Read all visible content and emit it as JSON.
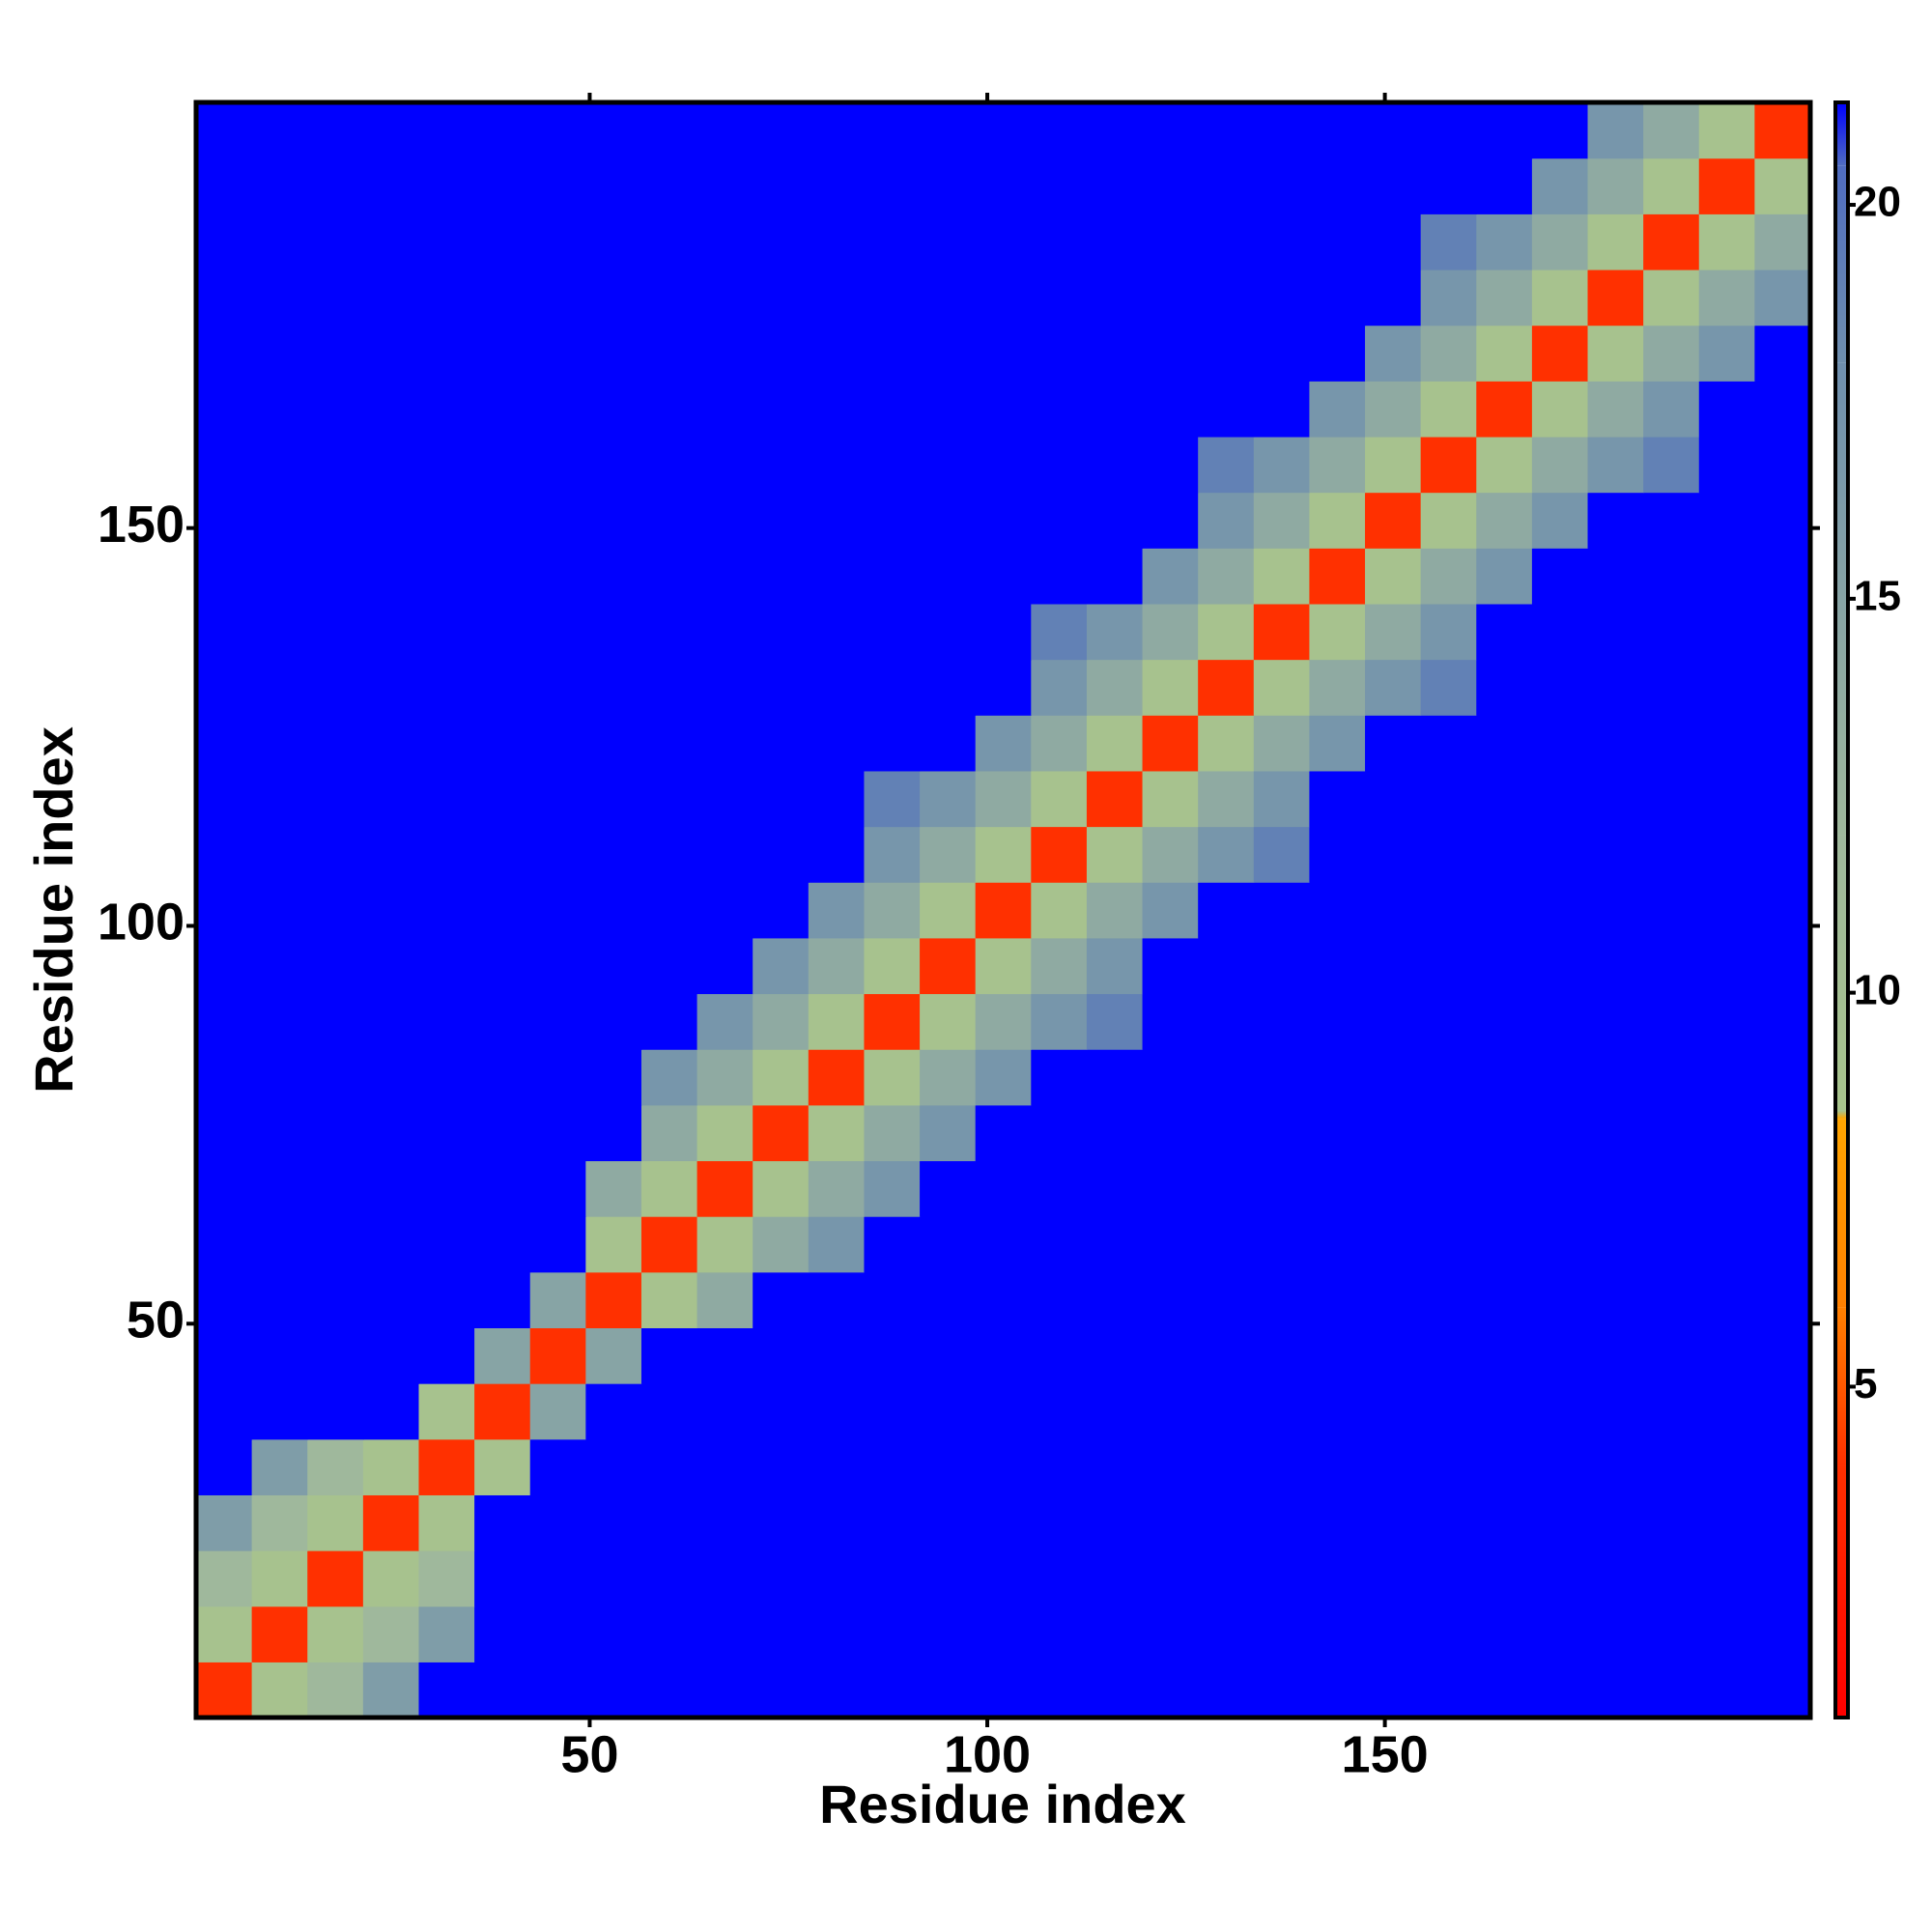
{
  "chart_data": {
    "type": "heatmap",
    "x_label": "Residue index",
    "y_label": "Residue index",
    "xbins": [
      0.5,
      7.5,
      14.5,
      21.5,
      28.5,
      35.5,
      42.5,
      49.5,
      56.5,
      63.5,
      70.5,
      77.5,
      84.5,
      91.5,
      98.5,
      105.5,
      112.5,
      119.5,
      126.5,
      133.5,
      140.5,
      147.5,
      154.5,
      161.5,
      168.5,
      175.5,
      182.5,
      189.5,
      196.5,
      203.5
    ],
    "ybins": [
      0.5,
      7.5,
      14.5,
      21.5,
      28.5,
      35.5,
      42.5,
      49.5,
      56.5,
      63.5,
      70.5,
      77.5,
      84.5,
      91.5,
      98.5,
      105.5,
      112.5,
      119.5,
      126.5,
      133.5,
      140.5,
      147.5,
      154.5,
      161.5,
      168.5,
      175.5,
      182.5,
      189.5,
      196.5,
      203.5
    ],
    "xlim": [
      0.5,
      203.5
    ],
    "ylim": [
      0.5,
      203.5
    ],
    "xticks": [
      50,
      100,
      150
    ],
    "yticks": [
      50,
      100,
      150
    ],
    "clim": [
      0.8,
      21.3
    ],
    "cticks": [
      5,
      10,
      15,
      20
    ],
    "colorscale": [
      {
        "value": 0.8,
        "color": "#ff0000"
      },
      {
        "value": 4,
        "color": "#ff3000"
      },
      {
        "value": 6,
        "color": "#ff8000"
      },
      {
        "value": 8.4,
        "color": "#ffa500"
      },
      {
        "value": 8.5,
        "color": "#a8c48c"
      },
      {
        "value": 12,
        "color": "#9fb89c"
      },
      {
        "value": 18,
        "color": "#6f8fae"
      },
      {
        "value": 20.5,
        "color": "#4f6cc0"
      },
      {
        "value": 21.3,
        "color": "#0000ff"
      }
    ],
    "z": [
      [
        4,
        9,
        12,
        16,
        21.3,
        21.3,
        21.3,
        21.3,
        21.3,
        21.3,
        21.3,
        21.3,
        21.3,
        21.3,
        21.3,
        21.3,
        21.3,
        21.3,
        21.3,
        21.3,
        21.3,
        21.3,
        21.3,
        21.3,
        21.3,
        21.3,
        21.3,
        21.3,
        21.3
      ],
      [
        9,
        4,
        9,
        12,
        16,
        21.3,
        21.3,
        21.3,
        21.3,
        21.3,
        21.3,
        21.3,
        21.3,
        21.3,
        21.3,
        21.3,
        21.3,
        21.3,
        21.3,
        21.3,
        21.3,
        21.3,
        21.3,
        21.3,
        21.3,
        21.3,
        21.3,
        21.3,
        21.3
      ],
      [
        12,
        9,
        4,
        9,
        12,
        21.3,
        21.3,
        21.3,
        21.3,
        21.3,
        21.3,
        21.3,
        21.3,
        21.3,
        21.3,
        21.3,
        21.3,
        21.3,
        21.3,
        21.3,
        21.3,
        21.3,
        21.3,
        21.3,
        21.3,
        21.3,
        21.3,
        21.3,
        21.3
      ],
      [
        16,
        12,
        9,
        4,
        9,
        21.3,
        21.3,
        21.3,
        21.3,
        21.3,
        21.3,
        21.3,
        21.3,
        21.3,
        21.3,
        21.3,
        21.3,
        21.3,
        21.3,
        21.3,
        21.3,
        21.3,
        21.3,
        21.3,
        21.3,
        21.3,
        21.3,
        21.3,
        21.3
      ],
      [
        21.3,
        16,
        12,
        9,
        4,
        9,
        21.3,
        21.3,
        21.3,
        21.3,
        21.3,
        21.3,
        21.3,
        21.3,
        21.3,
        21.3,
        21.3,
        21.3,
        21.3,
        21.3,
        21.3,
        21.3,
        21.3,
        21.3,
        21.3,
        21.3,
        21.3,
        21.3,
        21.3
      ],
      [
        21.3,
        21.3,
        21.3,
        21.3,
        9,
        4,
        15,
        21.3,
        21.3,
        21.3,
        21.3,
        21.3,
        21.3,
        21.3,
        21.3,
        21.3,
        21.3,
        21.3,
        21.3,
        21.3,
        21.3,
        21.3,
        21.3,
        21.3,
        21.3,
        21.3,
        21.3,
        21.3,
        21.3
      ],
      [
        21.3,
        21.3,
        21.3,
        21.3,
        21.3,
        15,
        4,
        15,
        21.3,
        21.3,
        21.3,
        21.3,
        21.3,
        21.3,
        21.3,
        21.3,
        21.3,
        21.3,
        21.3,
        21.3,
        21.3,
        21.3,
        21.3,
        21.3,
        21.3,
        21.3,
        21.3,
        21.3,
        21.3
      ],
      [
        21.3,
        21.3,
        21.3,
        21.3,
        21.3,
        21.3,
        15,
        4,
        9,
        14,
        21.3,
        21.3,
        21.3,
        21.3,
        21.3,
        21.3,
        21.3,
        21.3,
        21.3,
        21.3,
        21.3,
        21.3,
        21.3,
        21.3,
        21.3,
        21.3,
        21.3,
        21.3,
        21.3
      ],
      [
        21.3,
        21.3,
        21.3,
        21.3,
        21.3,
        21.3,
        21.3,
        9,
        4,
        9,
        14,
        17,
        21.3,
        21.3,
        21.3,
        21.3,
        21.3,
        21.3,
        21.3,
        21.3,
        21.3,
        21.3,
        21.3,
        21.3,
        21.3,
        21.3,
        21.3,
        21.3,
        21.3
      ],
      [
        21.3,
        21.3,
        21.3,
        21.3,
        21.3,
        21.3,
        21.3,
        14,
        9,
        4,
        9,
        14,
        17,
        21.3,
        21.3,
        21.3,
        21.3,
        21.3,
        21.3,
        21.3,
        21.3,
        21.3,
        21.3,
        21.3,
        21.3,
        21.3,
        21.3,
        21.3,
        21.3
      ],
      [
        21.3,
        21.3,
        21.3,
        21.3,
        21.3,
        21.3,
        21.3,
        21.3,
        14,
        9,
        4,
        9,
        14,
        17,
        21.3,
        21.3,
        21.3,
        21.3,
        21.3,
        21.3,
        21.3,
        21.3,
        21.3,
        21.3,
        21.3,
        21.3,
        21.3,
        21.3,
        21.3
      ],
      [
        21.3,
        21.3,
        21.3,
        21.3,
        21.3,
        21.3,
        21.3,
        21.3,
        17,
        14,
        9,
        4,
        9,
        14,
        17,
        21.3,
        21.3,
        21.3,
        21.3,
        21.3,
        21.3,
        21.3,
        21.3,
        21.3,
        21.3,
        21.3,
        21.3,
        21.3,
        21.3
      ],
      [
        21.3,
        21.3,
        21.3,
        21.3,
        21.3,
        21.3,
        21.3,
        21.3,
        21.3,
        17,
        14,
        9,
        4,
        9,
        14,
        17,
        19,
        21.3,
        21.3,
        21.3,
        21.3,
        21.3,
        21.3,
        21.3,
        21.3,
        21.3,
        21.3,
        21.3,
        21.3
      ],
      [
        21.3,
        21.3,
        21.3,
        21.3,
        21.3,
        21.3,
        21.3,
        21.3,
        21.3,
        21.3,
        17,
        14,
        9,
        4,
        9,
        14,
        17,
        21.3,
        21.3,
        21.3,
        21.3,
        21.3,
        21.3,
        21.3,
        21.3,
        21.3,
        21.3,
        21.3,
        21.3
      ],
      [
        21.3,
        21.3,
        21.3,
        21.3,
        21.3,
        21.3,
        21.3,
        21.3,
        21.3,
        21.3,
        21.3,
        17,
        14,
        9,
        4,
        9,
        14,
        17,
        21.3,
        21.3,
        21.3,
        21.3,
        21.3,
        21.3,
        21.3,
        21.3,
        21.3,
        21.3,
        21.3
      ],
      [
        21.3,
        21.3,
        21.3,
        21.3,
        21.3,
        21.3,
        21.3,
        21.3,
        21.3,
        21.3,
        21.3,
        21.3,
        17,
        14,
        9,
        4,
        9,
        14,
        17,
        19,
        21.3,
        21.3,
        21.3,
        21.3,
        21.3,
        21.3,
        21.3,
        21.3,
        21.3
      ],
      [
        21.3,
        21.3,
        21.3,
        21.3,
        21.3,
        21.3,
        21.3,
        21.3,
        21.3,
        21.3,
        21.3,
        21.3,
        19,
        17,
        14,
        9,
        4,
        9,
        14,
        17,
        21.3,
        21.3,
        21.3,
        21.3,
        21.3,
        21.3,
        21.3,
        21.3,
        21.3
      ],
      [
        21.3,
        21.3,
        21.3,
        21.3,
        21.3,
        21.3,
        21.3,
        21.3,
        21.3,
        21.3,
        21.3,
        21.3,
        21.3,
        21.3,
        17,
        14,
        9,
        4,
        9,
        14,
        17,
        21.3,
        21.3,
        21.3,
        21.3,
        21.3,
        21.3,
        21.3,
        21.3
      ],
      [
        21.3,
        21.3,
        21.3,
        21.3,
        21.3,
        21.3,
        21.3,
        21.3,
        21.3,
        21.3,
        21.3,
        21.3,
        21.3,
        21.3,
        21.3,
        17,
        14,
        9,
        4,
        9,
        14,
        17,
        19,
        21.3,
        21.3,
        21.3,
        21.3,
        21.3,
        21.3
      ],
      [
        21.3,
        21.3,
        21.3,
        21.3,
        21.3,
        21.3,
        21.3,
        21.3,
        21.3,
        21.3,
        21.3,
        21.3,
        21.3,
        21.3,
        21.3,
        19,
        17,
        14,
        9,
        4,
        9,
        14,
        17,
        21.3,
        21.3,
        21.3,
        21.3,
        21.3,
        21.3
      ],
      [
        21.3,
        21.3,
        21.3,
        21.3,
        21.3,
        21.3,
        21.3,
        21.3,
        21.3,
        21.3,
        21.3,
        21.3,
        21.3,
        21.3,
        21.3,
        21.3,
        21.3,
        17,
        14,
        9,
        4,
        9,
        14,
        17,
        21.3,
        21.3,
        21.3,
        21.3,
        21.3
      ],
      [
        21.3,
        21.3,
        21.3,
        21.3,
        21.3,
        21.3,
        21.3,
        21.3,
        21.3,
        21.3,
        21.3,
        21.3,
        21.3,
        21.3,
        21.3,
        21.3,
        21.3,
        21.3,
        17,
        14,
        9,
        4,
        9,
        14,
        17,
        21.3,
        21.3,
        21.3,
        21.3
      ],
      [
        21.3,
        21.3,
        21.3,
        21.3,
        21.3,
        21.3,
        21.3,
        21.3,
        21.3,
        21.3,
        21.3,
        21.3,
        21.3,
        21.3,
        21.3,
        21.3,
        21.3,
        21.3,
        19,
        17,
        14,
        9,
        4,
        9,
        14,
        17,
        19,
        21.3,
        21.3
      ],
      [
        21.3,
        21.3,
        21.3,
        21.3,
        21.3,
        21.3,
        21.3,
        21.3,
        21.3,
        21.3,
        21.3,
        21.3,
        21.3,
        21.3,
        21.3,
        21.3,
        21.3,
        21.3,
        21.3,
        21.3,
        17,
        14,
        9,
        4,
        9,
        14,
        17,
        21.3,
        21.3
      ],
      [
        21.3,
        21.3,
        21.3,
        21.3,
        21.3,
        21.3,
        21.3,
        21.3,
        21.3,
        21.3,
        21.3,
        21.3,
        21.3,
        21.3,
        21.3,
        21.3,
        21.3,
        21.3,
        21.3,
        21.3,
        21.3,
        17,
        14,
        9,
        4,
        9,
        14,
        17,
        21.3
      ],
      [
        21.3,
        21.3,
        21.3,
        21.3,
        21.3,
        21.3,
        21.3,
        21.3,
        21.3,
        21.3,
        21.3,
        21.3,
        21.3,
        21.3,
        21.3,
        21.3,
        21.3,
        21.3,
        21.3,
        21.3,
        21.3,
        21.3,
        17,
        14,
        9,
        4,
        9,
        14,
        17
      ],
      [
        21.3,
        21.3,
        21.3,
        21.3,
        21.3,
        21.3,
        21.3,
        21.3,
        21.3,
        21.3,
        21.3,
        21.3,
        21.3,
        21.3,
        21.3,
        21.3,
        21.3,
        21.3,
        21.3,
        21.3,
        21.3,
        21.3,
        19,
        17,
        14,
        9,
        4,
        9,
        14
      ],
      [
        21.3,
        21.3,
        21.3,
        21.3,
        21.3,
        21.3,
        21.3,
        21.3,
        21.3,
        21.3,
        21.3,
        21.3,
        21.3,
        21.3,
        21.3,
        21.3,
        21.3,
        21.3,
        21.3,
        21.3,
        21.3,
        21.3,
        21.3,
        21.3,
        17,
        14,
        9,
        4,
        9
      ],
      [
        21.3,
        21.3,
        21.3,
        21.3,
        21.3,
        21.3,
        21.3,
        21.3,
        21.3,
        21.3,
        21.3,
        21.3,
        21.3,
        21.3,
        21.3,
        21.3,
        21.3,
        21.3,
        21.3,
        21.3,
        21.3,
        21.3,
        21.3,
        21.3,
        21.3,
        17,
        14,
        9,
        4
      ]
    ]
  }
}
